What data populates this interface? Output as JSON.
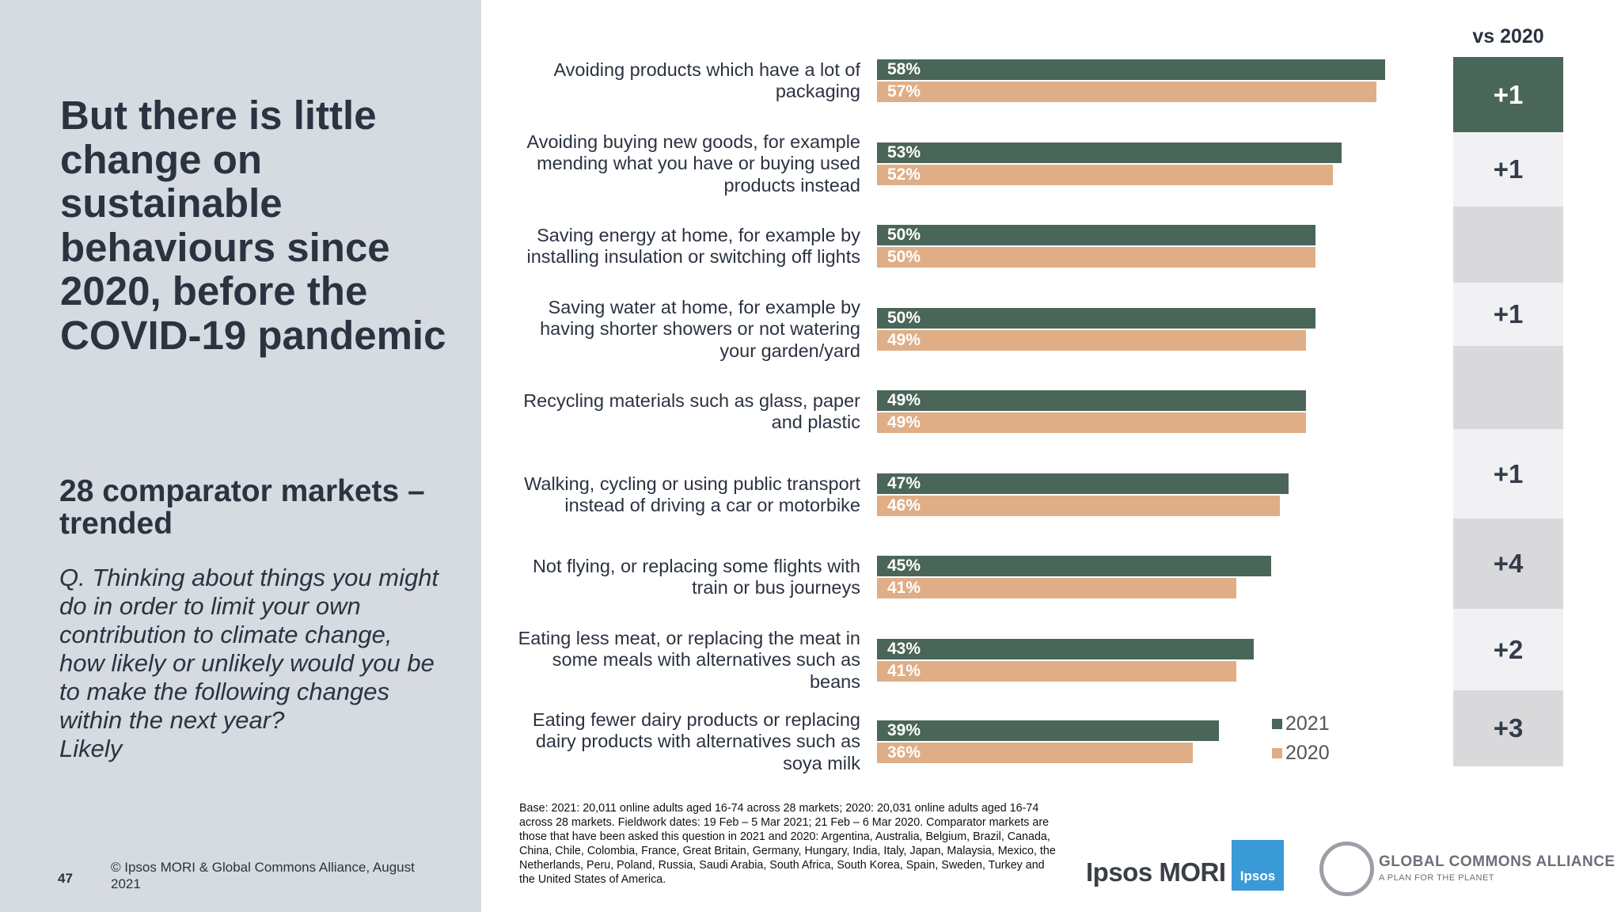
{
  "left_panel": {
    "title": "But there is little change on sustainable behaviours since 2020, before the COVID-19 pandemic",
    "subtitle": "28 comparator markets – trended",
    "question": "Q. Thinking about things you might do in order to limit your own contribution to climate change, how likely or unlikely would you be to make the following changes within the next year?",
    "question_answer": "Likely",
    "page_number": "47",
    "copyright": "© Ipsos MORI & Global Commons Alliance, August 2021"
  },
  "chart_data": {
    "type": "bar",
    "orientation": "horizontal",
    "categories": [
      "Avoiding products which have a lot of packaging",
      "Avoiding buying new goods, for example mending what you have or buying used products instead",
      "Saving energy at home, for example by installing insulation or switching off lights",
      "Saving water at home, for example by having shorter showers or not watering your garden/yard",
      "Recycling materials such as glass, paper and plastic",
      "Walking, cycling or using public transport instead of driving a car or motorbike",
      "Not flying, or replacing some flights with train or bus journeys",
      "Eating less meat, or replacing the meat in some meals with alternatives such as beans",
      "Eating fewer dairy products or replacing dairy products with alternatives such as soya milk"
    ],
    "series": [
      {
        "name": "2021",
        "color": "#4a6658",
        "values": [
          58,
          53,
          50,
          50,
          49,
          47,
          45,
          43,
          39
        ]
      },
      {
        "name": "2020",
        "color": "#dfae87",
        "values": [
          57,
          52,
          50,
          49,
          49,
          46,
          41,
          41,
          36
        ]
      }
    ],
    "value_format": "%",
    "legend": "bottom-right",
    "change_column": {
      "header": "vs 2020",
      "values": [
        "+1",
        "+1",
        "",
        "+1",
        "",
        "+1",
        "+4",
        "+2",
        "+3"
      ]
    }
  },
  "footnote": "Base: 2021: 20,011 online adults aged 16-74 across 28 markets; 2020: 20,031 online adults aged 16-74 across 28 markets. Fieldwork dates: 19 Feb – 5 Mar 2021; 21 Feb – 6 Mar 2020. Comparator markets are those that have been asked this question in 2021 and 2020: Argentina, Australia, Belgium, Brazil, Canada, China, Chile, Colombia, France, Great Britain, Germany, Hungary, India, Italy, Japan, Malaysia, Mexico, the Netherlands, Peru, Poland, Russia, Saudi Arabia, South Africa, South Korea, Spain, Sweden, Turkey and the United States of America.",
  "logos": {
    "ipsos_mori": "Ipsos MORI",
    "ipsos": "Ipsos",
    "gca_title": "GLOBAL COMMONS ALLIANCE",
    "gca_tagline": "A PLAN FOR THE PLANET"
  }
}
